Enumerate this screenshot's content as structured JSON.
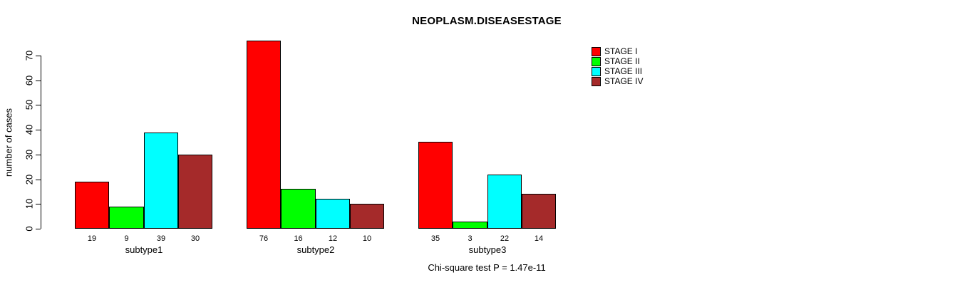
{
  "chart_data": {
    "type": "bar",
    "title": "NEOPLASM.DISEASESTAGE",
    "ylabel": "number of cases",
    "xlabel": "",
    "categories": [
      "subtype1",
      "subtype2",
      "subtype3"
    ],
    "series": [
      {
        "name": "STAGE I",
        "color": "#FF0000",
        "values": [
          19,
          76,
          35
        ]
      },
      {
        "name": "STAGE II",
        "color": "#00FF00",
        "values": [
          9,
          16,
          3
        ]
      },
      {
        "name": "STAGE III",
        "color": "#00FFFF",
        "values": [
          39,
          12,
          22
        ]
      },
      {
        "name": "STAGE IV",
        "color": "#A52A2A",
        "values": [
          30,
          10,
          14
        ]
      }
    ],
    "bar_value_labels": [
      [
        "19",
        "9",
        "39",
        "30"
      ],
      [
        "76",
        "16",
        "12",
        "10"
      ],
      [
        "35",
        "3",
        "22",
        "14"
      ]
    ],
    "yticks": [
      "0",
      "10",
      "20",
      "30",
      "40",
      "50",
      "60",
      "70"
    ],
    "ylim": [
      0,
      70
    ],
    "grid": false,
    "legend_position": "top-right",
    "annotation": "Chi-square test P = 1.47e-11",
    "axis_color": "#000000",
    "background_color": "#FFFFFF"
  }
}
